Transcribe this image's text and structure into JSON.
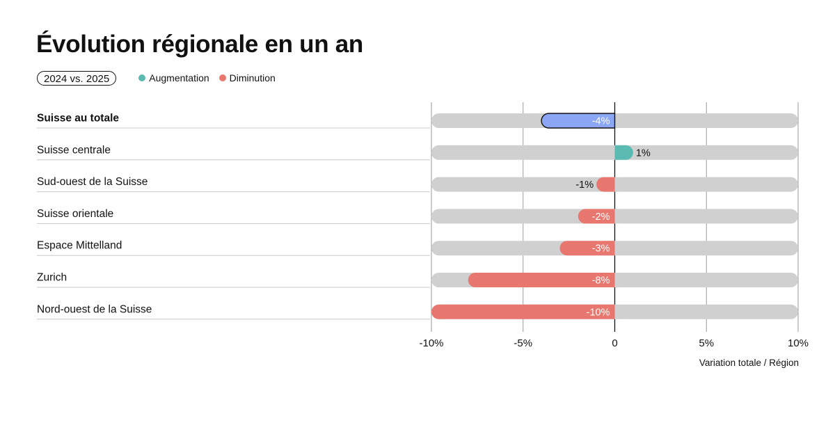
{
  "header": {
    "title": "Évolution régionale en un an",
    "period": "2024 vs. 2025"
  },
  "legend": [
    {
      "label": "Augmentation",
      "color": "#5bbab2"
    },
    {
      "label": "Diminution",
      "color": "#e8786f"
    }
  ],
  "colors": {
    "track": "#d0d0d0",
    "highlight": "#8aa6f5",
    "increase": "#5bbab2",
    "decrease": "#e8786f"
  },
  "chart_data": {
    "type": "bar",
    "orientation": "horizontal",
    "categories": [
      "Suisse au totale",
      "Suisse centrale",
      "Sud-ouest de la Suisse",
      "Suisse orientale",
      "Espace Mittelland",
      "Zurich",
      "Nord-ouest de la Suisse"
    ],
    "values": [
      -4,
      1,
      -1,
      -2,
      -3,
      -8,
      -10
    ],
    "labels": [
      "-4%",
      "1%",
      "-1%",
      "-2%",
      "-3%",
      "-8%",
      "-10%"
    ],
    "highlight": [
      true,
      false,
      false,
      false,
      false,
      false,
      false
    ],
    "xlim": [
      -10,
      10
    ],
    "xticks": [
      -10,
      -5,
      0,
      5,
      10
    ],
    "xtick_labels": [
      "-10%",
      "-5%",
      "0",
      "5%",
      "10%"
    ],
    "xlabel": "Variation totale / Région",
    "grid": true
  }
}
